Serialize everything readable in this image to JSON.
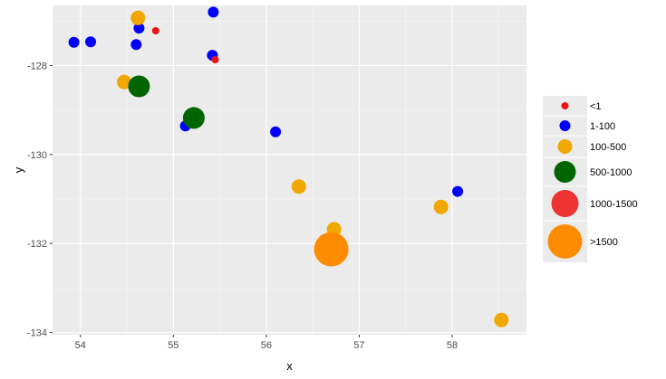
{
  "chart_data": {
    "type": "scatter",
    "title": "",
    "xlabel": "x",
    "ylabel": "y",
    "xlim": [
      53.7,
      58.8
    ],
    "ylim": [
      -134.05,
      -126.65
    ],
    "x_ticks": [
      54,
      55,
      56,
      57,
      58
    ],
    "x_tick_labels": [
      "54",
      "55",
      "56",
      "57",
      "58"
    ],
    "y_ticks": [
      -128,
      -130,
      -132,
      -134
    ],
    "y_tick_labels": [
      "-128",
      "-130",
      "-132",
      "-134"
    ],
    "grid": true,
    "legend_position": "right",
    "legend": [
      {
        "label": "<1",
        "color": "#ee1111",
        "size": 4
      },
      {
        "label": "1-100",
        "color": "#0000ff",
        "size": 6
      },
      {
        "label": "100-500",
        "color": "#f0a800",
        "size": 8
      },
      {
        "label": "500-1000",
        "color": "#006400",
        "size": 12
      },
      {
        "label": "1000-1500",
        "color": "#ee3333",
        "size": 15
      },
      {
        "label": ">1500",
        "color": "#ff8c00",
        "size": 19
      }
    ],
    "points": [
      {
        "x": 53.93,
        "y": -127.48,
        "group": "1-100"
      },
      {
        "x": 54.11,
        "y": -127.47,
        "group": "1-100"
      },
      {
        "x": 54.47,
        "y": -128.37,
        "group": "100-500"
      },
      {
        "x": 54.6,
        "y": -127.53,
        "group": "1-100"
      },
      {
        "x": 54.63,
        "y": -127.16,
        "group": "1-100"
      },
      {
        "x": 54.62,
        "y": -126.93,
        "group": "100-500"
      },
      {
        "x": 54.63,
        "y": -128.47,
        "group": "500-1000"
      },
      {
        "x": 54.81,
        "y": -127.22,
        "group": "<1"
      },
      {
        "x": 55.13,
        "y": -129.36,
        "group": "1-100"
      },
      {
        "x": 55.22,
        "y": -129.18,
        "group": "500-1000"
      },
      {
        "x": 55.43,
        "y": -126.8,
        "group": "1-100"
      },
      {
        "x": 55.42,
        "y": -127.77,
        "group": "1-100"
      },
      {
        "x": 55.45,
        "y": -127.87,
        "group": "<1"
      },
      {
        "x": 56.1,
        "y": -129.49,
        "group": "1-100"
      },
      {
        "x": 56.35,
        "y": -130.72,
        "group": "100-500"
      },
      {
        "x": 56.73,
        "y": -131.68,
        "group": "100-500"
      },
      {
        "x": 56.7,
        "y": -132.13,
        "group": ">1500"
      },
      {
        "x": 57.88,
        "y": -131.18,
        "group": "100-500"
      },
      {
        "x": 58.06,
        "y": -130.83,
        "group": "1-100"
      },
      {
        "x": 58.53,
        "y": -133.72,
        "group": "100-500"
      }
    ]
  }
}
